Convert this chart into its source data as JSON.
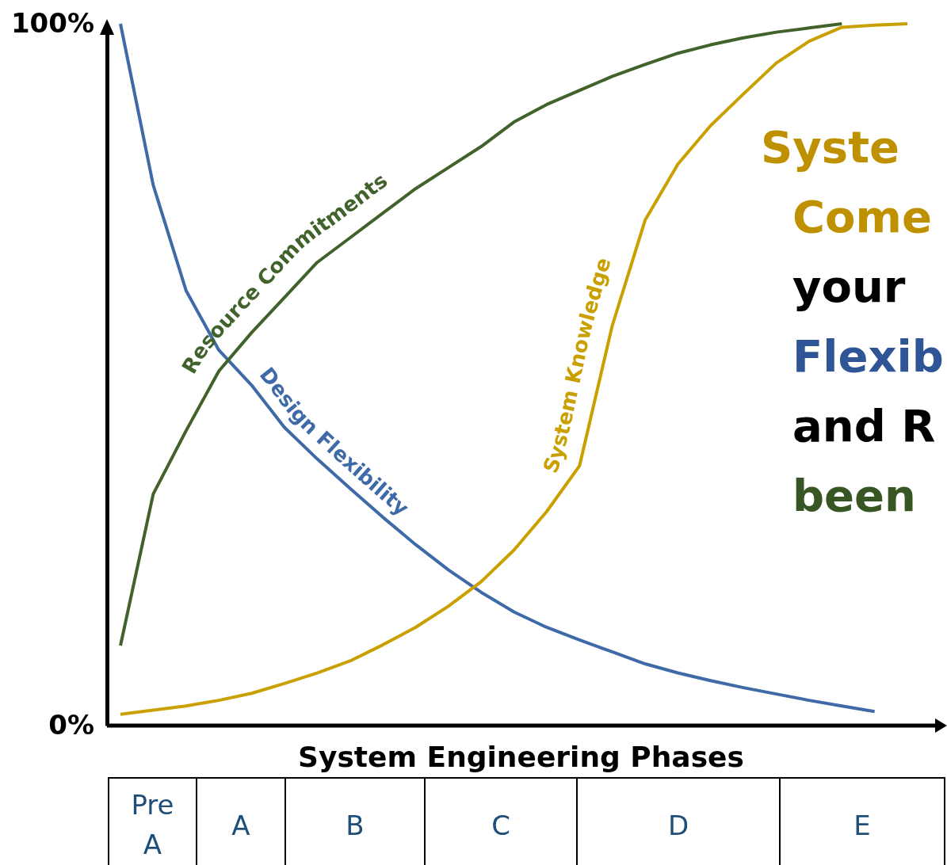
{
  "chart_data": {
    "type": "line",
    "xlabel": "System Engineering Phases",
    "categories": [
      null,
      null,
      null,
      null,
      null,
      null,
      null,
      null,
      null,
      null,
      null,
      null,
      null,
      null,
      null,
      null,
      null,
      null,
      null,
      null,
      null,
      null,
      null,
      null,
      null
    ],
    "ylim": [
      0,
      100
    ],
    "yticks": [
      {
        "value": 0,
        "label": "0%"
      },
      {
        "value": 100,
        "label": "100%"
      }
    ],
    "tick_labels": "y",
    "series": [
      {
        "name": "Design Flexibility",
        "color": "#3e6aa8",
        "values": [
          100,
          77,
          62,
          53.5,
          48.5,
          42.5,
          38,
          33.8,
          29.7,
          25.8,
          22.2,
          19,
          16.2,
          14,
          12.2,
          10.5,
          8.8,
          7.5,
          6.4,
          5.4,
          4.5,
          3.6,
          2.8,
          2,
          null
        ]
      },
      {
        "name": "Resource Commitments",
        "color": "#41622b",
        "values": [
          11.4,
          33,
          42,
          50.5,
          56,
          61,
          66,
          69.5,
          73,
          76.5,
          79.5,
          82.5,
          86,
          88.5,
          90.5,
          92.5,
          94.2,
          95.8,
          97,
          98,
          98.8,
          99.4,
          100,
          null,
          null
        ]
      },
      {
        "name": "System Knowledge",
        "color": "#c9a000",
        "values": [
          1.6,
          2.2,
          2.8,
          3.6,
          4.6,
          6,
          7.5,
          9.2,
          11.5,
          14,
          17,
          20.5,
          25,
          30.5,
          37,
          57,
          72,
          80,
          85.5,
          90,
          94.4,
          97.5,
          99.5,
          99.8,
          100
        ]
      }
    ],
    "annotations": [
      "Pre A",
      "A",
      "B",
      "C",
      "D",
      "E",
      "Syste",
      "Come",
      "your",
      "Flexib",
      "and R",
      "been"
    ]
  }
}
